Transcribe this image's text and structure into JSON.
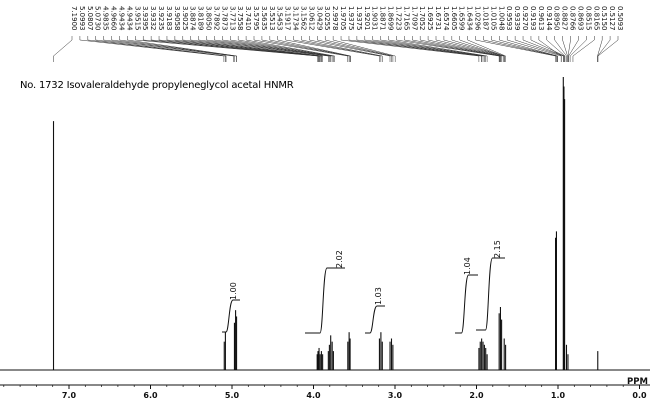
{
  "chart_data": {
    "type": "line",
    "title": "No. 1732 Isovaleraldehyde propyleneglycol acetal HNMR",
    "xlabel": "PPM",
    "xlim": [
      8.0,
      -0.4
    ],
    "x_reversed": true,
    "ticks": [
      {
        "value": 8.0,
        "label": ".0"
      },
      {
        "value": 7.0,
        "label": "7.0"
      },
      {
        "value": 6.0,
        "label": "6.0"
      },
      {
        "value": 5.0,
        "label": "5.0"
      },
      {
        "value": 4.0,
        "label": "4.0"
      },
      {
        "value": 3.0,
        "label": "3.0"
      },
      {
        "value": 2.0,
        "label": "2.0"
      },
      {
        "value": 1.0,
        "label": "1.0"
      },
      {
        "value": 0.0,
        "label": "0.0"
      }
    ],
    "peak_list": [
      "7.1900",
      "5.0993",
      "5.0807",
      "5.0730",
      "4.9835",
      "4.9660",
      "4.9434",
      "4.9434",
      "3.9515",
      "3.9395",
      "3.9332",
      "3.9235",
      "3.9183",
      "3.9058",
      "3.9025",
      "3.8874",
      "3.8189",
      "3.8050",
      "3.7892",
      "3.7873",
      "3.7713",
      "3.7558",
      "3.7410",
      "3.5795",
      "3.5635",
      "3.5513",
      "3.5453",
      "3.1917",
      "3.1734",
      "3.1562",
      "3.0612",
      "3.0429",
      "3.0255",
      "2.9978",
      "1.9705",
      "1.9375",
      "1.9375",
      "1.9201",
      "1.9031",
      "1.8871",
      "1.8699",
      "1.7223",
      "1.7165",
      "1.7097",
      "1.7052",
      "1.6925",
      "1.6731",
      "1.6574",
      "1.6605",
      "1.6599",
      "1.6434",
      "1.0296",
      "1.0187",
      "1.0105",
      "1.0048",
      "0.9593",
      "0.9339",
      "0.9270",
      "0.9193",
      "0.9613",
      "0.9144",
      "0.8950",
      "0.8827",
      "0.8766",
      "0.8693",
      "0.8515",
      "0.8165",
      "0.5150",
      "0.5127",
      "0.5093"
    ],
    "integrals": [
      {
        "center": 4.95,
        "value": "1.00"
      },
      {
        "center": 3.7,
        "value": "2.02"
      },
      {
        "center": 3.08,
        "value": "1.03"
      },
      {
        "center": 1.9,
        "value": "1.04"
      },
      {
        "center": 1.5,
        "value": "2.15"
      }
    ],
    "peaks": [
      {
        "x": 7.19,
        "h": 0.79
      },
      {
        "x": 5.095,
        "h": 0.09
      },
      {
        "x": 5.081,
        "h": 0.12
      },
      {
        "x": 4.97,
        "h": 0.15
      },
      {
        "x": 4.956,
        "h": 0.19
      },
      {
        "x": 4.944,
        "h": 0.17
      },
      {
        "x": 3.955,
        "h": 0.05
      },
      {
        "x": 3.945,
        "h": 0.06
      },
      {
        "x": 3.932,
        "h": 0.07
      },
      {
        "x": 3.918,
        "h": 0.05
      },
      {
        "x": 3.903,
        "h": 0.06
      },
      {
        "x": 3.888,
        "h": 0.05
      },
      {
        "x": 3.818,
        "h": 0.06
      },
      {
        "x": 3.805,
        "h": 0.08
      },
      {
        "x": 3.789,
        "h": 0.11
      },
      {
        "x": 3.771,
        "h": 0.09
      },
      {
        "x": 3.756,
        "h": 0.06
      },
      {
        "x": 3.579,
        "h": 0.09
      },
      {
        "x": 3.563,
        "h": 0.12
      },
      {
        "x": 3.551,
        "h": 0.1
      },
      {
        "x": 3.191,
        "h": 0.1
      },
      {
        "x": 3.173,
        "h": 0.12
      },
      {
        "x": 3.156,
        "h": 0.09
      },
      {
        "x": 3.061,
        "h": 0.09
      },
      {
        "x": 3.043,
        "h": 0.1
      },
      {
        "x": 3.026,
        "h": 0.08
      },
      {
        "x": 1.97,
        "h": 0.07
      },
      {
        "x": 1.954,
        "h": 0.09
      },
      {
        "x": 1.937,
        "h": 0.1
      },
      {
        "x": 1.92,
        "h": 0.09
      },
      {
        "x": 1.903,
        "h": 0.08
      },
      {
        "x": 1.887,
        "h": 0.07
      },
      {
        "x": 1.87,
        "h": 0.05
      },
      {
        "x": 1.722,
        "h": 0.18
      },
      {
        "x": 1.706,
        "h": 0.2
      },
      {
        "x": 1.692,
        "h": 0.16
      },
      {
        "x": 1.66,
        "h": 0.1
      },
      {
        "x": 1.643,
        "h": 0.08
      },
      {
        "x": 1.03,
        "h": 0.42
      },
      {
        "x": 1.019,
        "h": 0.44
      },
      {
        "x": 0.935,
        "h": 0.93
      },
      {
        "x": 0.927,
        "h": 0.9
      },
      {
        "x": 0.919,
        "h": 0.86
      },
      {
        "x": 0.896,
        "h": 0.08
      },
      {
        "x": 0.878,
        "h": 0.05
      },
      {
        "x": 0.512,
        "h": 0.06
      }
    ],
    "grid": false
  }
}
